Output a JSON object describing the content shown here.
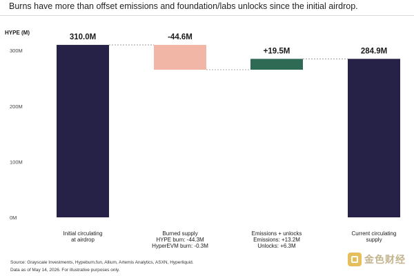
{
  "title": "Burns have more than offset emissions and foundation/labs unlocks since the initial airdrop.",
  "footer": {
    "source": "Source: Grayscale Investments, Hypeburn.fun, Allium, Artemis Analytics, ASXN, Hyperliquid.",
    "note": "Data as of May 14, 2026. For illustrative purposes only."
  },
  "watermark": "金色财经",
  "colors": {
    "total": "#262146",
    "decrease": "#f2b6a6",
    "increase": "#2f6b54",
    "connector": "#888888",
    "axis_text": "#444444"
  },
  "chart_data": {
    "type": "bar",
    "subtype": "waterfall",
    "ylabel": "HYPE (M)",
    "ylim": [
      0,
      320
    ],
    "yticks": [
      0,
      100,
      200,
      300
    ],
    "ytick_labels": [
      "0M",
      "100M",
      "200M",
      "300M"
    ],
    "grid": false,
    "bars": [
      {
        "kind": "total",
        "start": 0,
        "end": 310.0,
        "value_label": "310.0M",
        "category": [
          "Initial circulating",
          "at airdrop"
        ]
      },
      {
        "kind": "decrease",
        "start": 310.0,
        "end": 265.4,
        "value_label": "-44.6M",
        "category": [
          "Burned supply",
          "HYPE burn: -44.3M",
          "HyperEVM burn: -0.3M"
        ]
      },
      {
        "kind": "increase",
        "start": 265.4,
        "end": 284.9,
        "value_label": "+19.5M",
        "category": [
          "Emissions + unlocks",
          "Emissions: +13.2M",
          "Unlocks: +6.3M"
        ]
      },
      {
        "kind": "total",
        "start": 0,
        "end": 284.9,
        "value_label": "284.9M",
        "category": [
          "Current circulating",
          "supply"
        ]
      }
    ]
  }
}
